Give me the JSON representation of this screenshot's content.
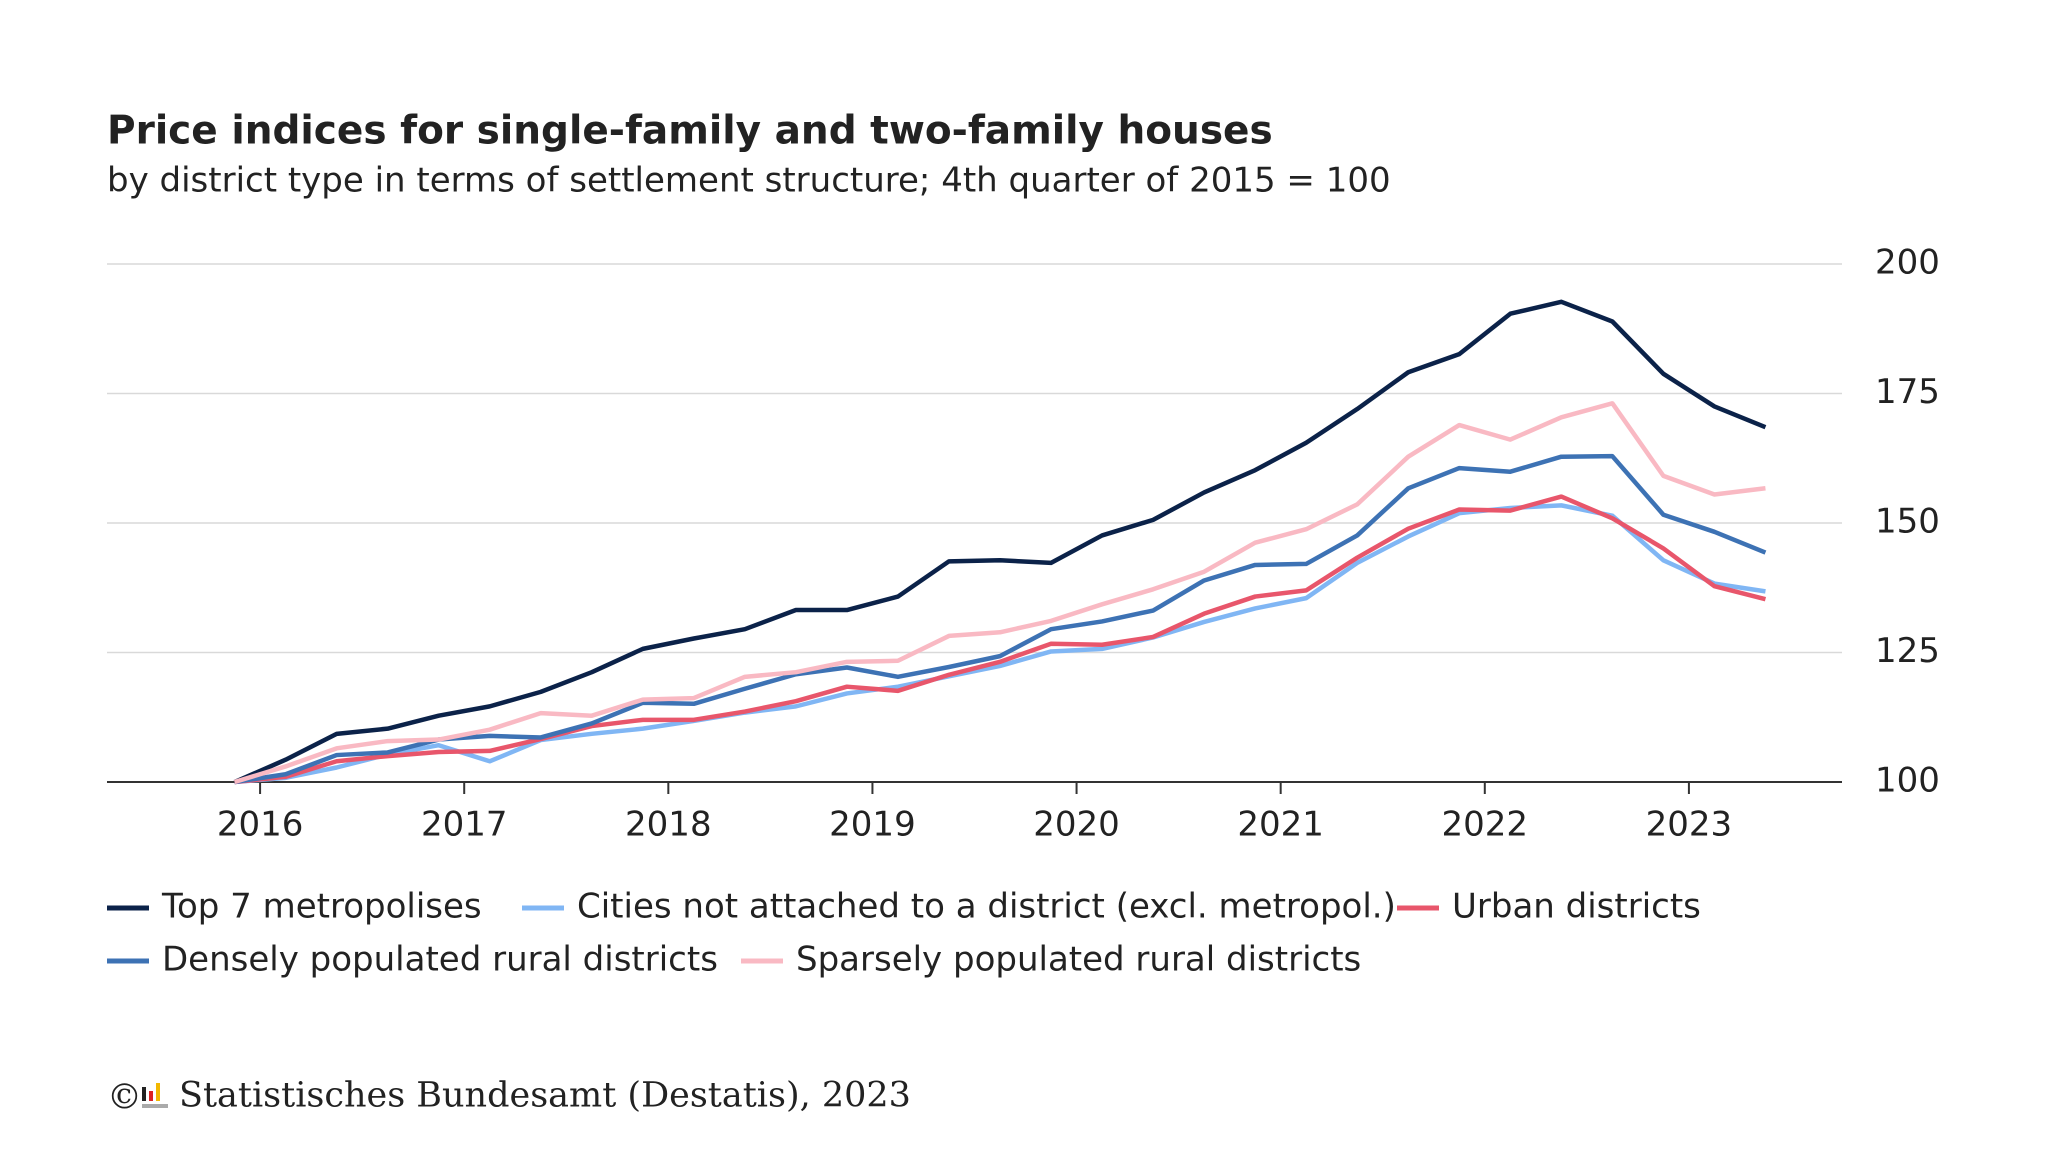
{
  "chart_data": {
    "type": "line",
    "title": "Price indices for single-family and two-family houses",
    "subtitle": "by district type in terms of settlement structure; 4th quarter of 2015 = 100",
    "x": [
      2015.875,
      2016.125,
      2016.375,
      2016.625,
      2016.875,
      2017.125,
      2017.375,
      2017.625,
      2017.875,
      2018.125,
      2018.375,
      2018.625,
      2018.875,
      2019.125,
      2019.375,
      2019.625,
      2019.875,
      2020.125,
      2020.375,
      2020.625,
      2020.875,
      2021.125,
      2021.375,
      2021.625,
      2021.875,
      2022.125,
      2022.375,
      2022.625,
      2022.875,
      2023.125,
      2023.375
    ],
    "xlim": [
      2015.25,
      2023.75
    ],
    "xticks": [
      2016,
      2017,
      2018,
      2019,
      2020,
      2021,
      2022,
      2023
    ],
    "ylim": [
      100,
      200
    ],
    "yticks": [
      100,
      125,
      150,
      175,
      200
    ],
    "grid": true,
    "legend": "bottom",
    "series": [
      {
        "name": "Top 7 metropolises",
        "color": "#0b2249",
        "values": [
          100,
          104.3,
          109.3,
          110.3,
          112.8,
          114.6,
          117.4,
          121.2,
          125.7,
          127.7,
          129.5,
          133.2,
          133.2,
          135.8,
          142.6,
          142.8,
          142.3,
          147.6,
          150.6,
          155.9,
          160.2,
          165.5,
          172.0,
          179.1,
          182.6,
          190.4,
          192.7,
          188.9,
          178.8,
          172.5,
          168.5
        ]
      },
      {
        "name": "Cities not attached to a district (excl. metropol.)",
        "color": "#80b6f4",
        "values": [
          100,
          100.8,
          102.8,
          105.3,
          107.1,
          104.0,
          108.1,
          109.3,
          110.3,
          111.8,
          113.4,
          114.6,
          117.1,
          118.4,
          120.4,
          122.4,
          125.2,
          125.7,
          127.9,
          130.9,
          133.5,
          135.5,
          142.3,
          147.4,
          151.9,
          152.9,
          153.4,
          151.4,
          142.8,
          138.3,
          136.8
        ]
      },
      {
        "name": "Urban districts",
        "color": "#e8566b",
        "values": [
          100,
          101,
          104,
          105,
          105.8,
          106,
          108.3,
          110.8,
          112,
          112,
          113.6,
          115.6,
          118.4,
          117.6,
          120.7,
          123.2,
          126.7,
          126.5,
          128,
          132.5,
          135.8,
          137,
          143.3,
          148.9,
          152.6,
          152.4,
          155.1,
          150.9,
          145.1,
          137.8,
          135.3
        ]
      },
      {
        "name": "Densely populated rural districts",
        "color": "#3d72b4",
        "values": [
          100,
          101.5,
          105.2,
          105.7,
          108.2,
          108.9,
          108.6,
          111.3,
          115.3,
          115.1,
          118,
          120.8,
          122.1,
          120.3,
          122.2,
          124.3,
          129.5,
          131,
          133.1,
          138.9,
          141.9,
          142.1,
          147.6,
          156.7,
          160.6,
          159.9,
          162.8,
          162.9,
          151.6,
          148.3,
          144.3
        ]
      },
      {
        "name": "Sparsely populated rural districts",
        "color": "#f9b9c3",
        "values": [
          100,
          103,
          106.5,
          107.9,
          108.2,
          110.1,
          113.3,
          112.8,
          115.9,
          116.2,
          120.3,
          121.2,
          123.2,
          123.4,
          128.2,
          128.9,
          131.1,
          134.3,
          137.2,
          140.6,
          146.2,
          148.8,
          153.6,
          162.8,
          168.9,
          166.1,
          170.4,
          173.1,
          159.1,
          155.5,
          156.7
        ]
      }
    ]
  },
  "footer": {
    "copyright": "©",
    "source": "Statistisches Bundesamt (Destatis), 2023"
  }
}
